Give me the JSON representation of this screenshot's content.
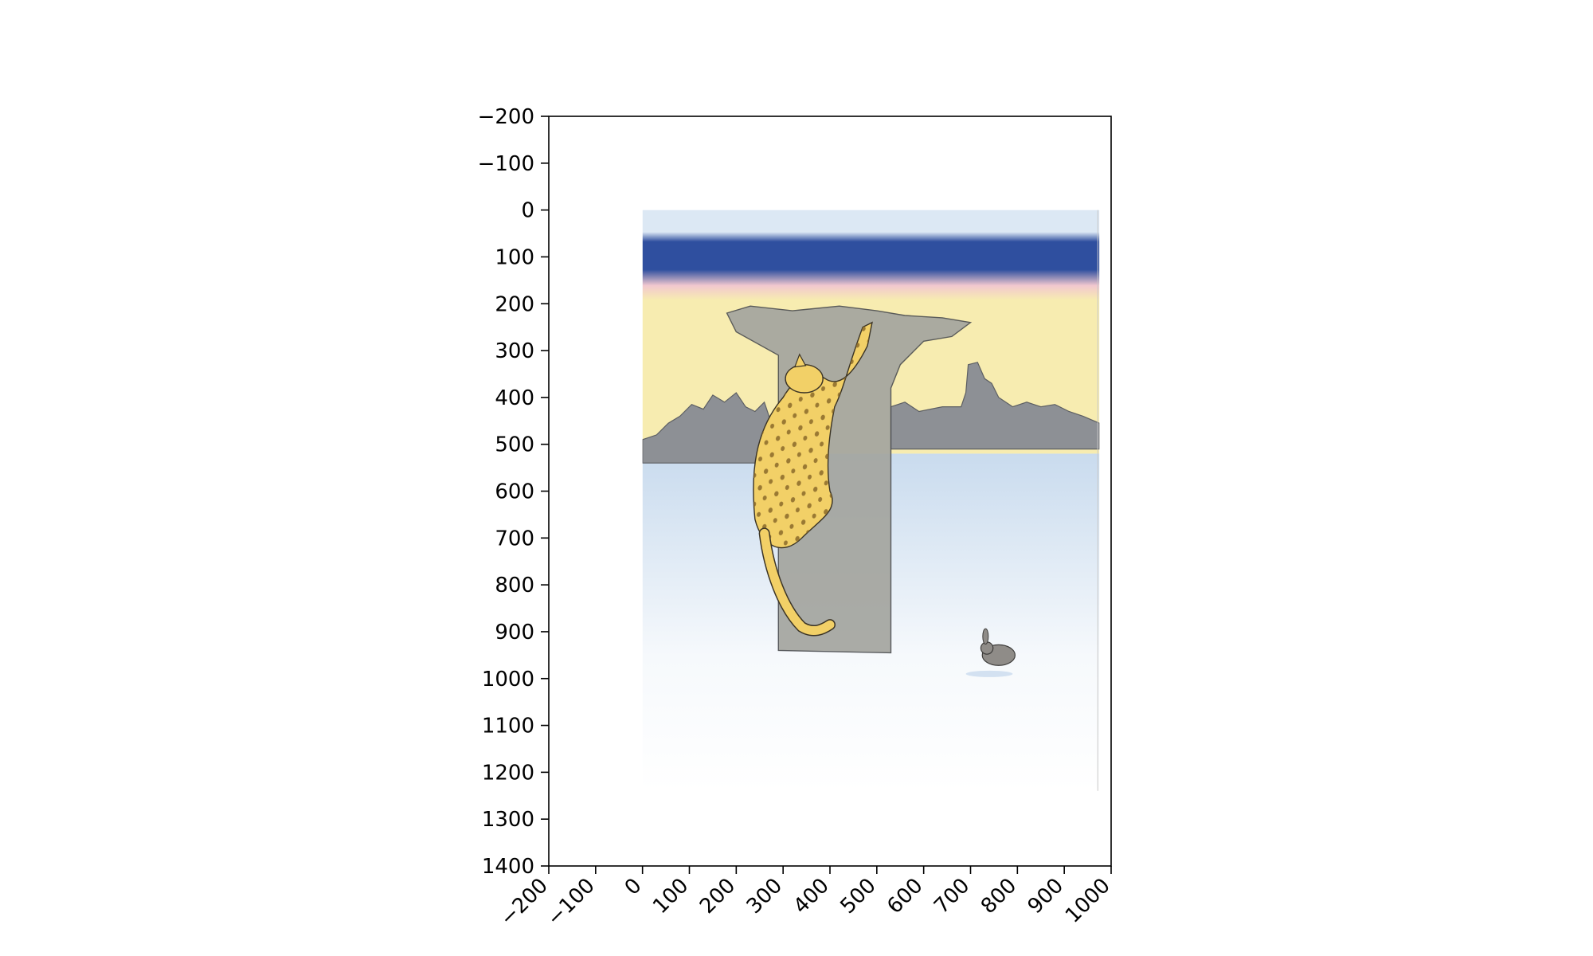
{
  "chart_data": {
    "type": "image",
    "image_content": "watercolor illustration: spotted yellow wildcat climbing a grey tree trunk at dusk, small grey rabbit hopping on snow at lower right, distant grey trees against a blue, pink and yellow sky",
    "x_ticks": [
      -200,
      -100,
      0,
      100,
      200,
      300,
      400,
      500,
      600,
      700,
      800,
      900,
      1000
    ],
    "y_ticks": [
      -200,
      -100,
      0,
      100,
      200,
      300,
      400,
      500,
      600,
      700,
      800,
      900,
      1000,
      1100,
      1200,
      1300,
      1400
    ],
    "x_tick_labels": [
      "−200",
      "−100",
      "0",
      "100",
      "200",
      "300",
      "400",
      "500",
      "600",
      "700",
      "800",
      "900",
      "1000"
    ],
    "y_tick_labels": [
      "−200",
      "−100",
      "0",
      "100",
      "200",
      "300",
      "400",
      "500",
      "600",
      "700",
      "800",
      "900",
      "1000",
      "1100",
      "1200",
      "1300",
      "1400"
    ],
    "xlim": [
      -200,
      1000
    ],
    "ylim": [
      1400,
      -200
    ],
    "y_inverted": true,
    "image_extent": {
      "x": [
        0,
        975
      ],
      "y": [
        0,
        1240
      ]
    },
    "xlabel": "",
    "ylabel": "",
    "title": "",
    "grid": false,
    "x_tick_rotation_deg": 45
  },
  "colors": {
    "sky_pale": "#dce8f4",
    "sky_blue": "#2f4f9f",
    "sky_pink": "#f2c8cf",
    "sky_yellow": "#f7ecb0",
    "trees_grey": "#8d9095",
    "trunk_grey": "#a4a59f",
    "cat_yellow": "#f2d067",
    "cat_spots": "#8a6a2a",
    "snow": "#f6f9fc",
    "snow_blue": "#c9dbee",
    "rabbit": "#8f8c88",
    "axis": "#000000"
  }
}
